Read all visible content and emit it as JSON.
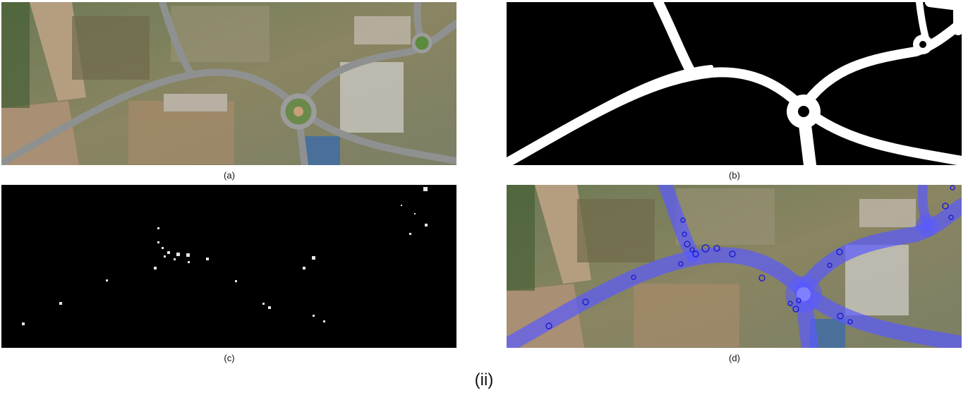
{
  "figure": {
    "group_label": "(ii)",
    "panels": [
      {
        "id": "a",
        "caption": "(a)",
        "content": "aerial-image-roundabout"
      },
      {
        "id": "b",
        "caption": "(b)",
        "content": "binary-road-mask"
      },
      {
        "id": "c",
        "caption": "(c)",
        "content": "sparse-keypoint-map"
      },
      {
        "id": "d",
        "caption": "(d)",
        "content": "road-overlay-with-detections"
      }
    ]
  },
  "colors": {
    "overlay_blue": "#5a5aff",
    "circle_blue": "#2020d0",
    "mask_white": "#ffffff",
    "mask_black": "#000000"
  }
}
